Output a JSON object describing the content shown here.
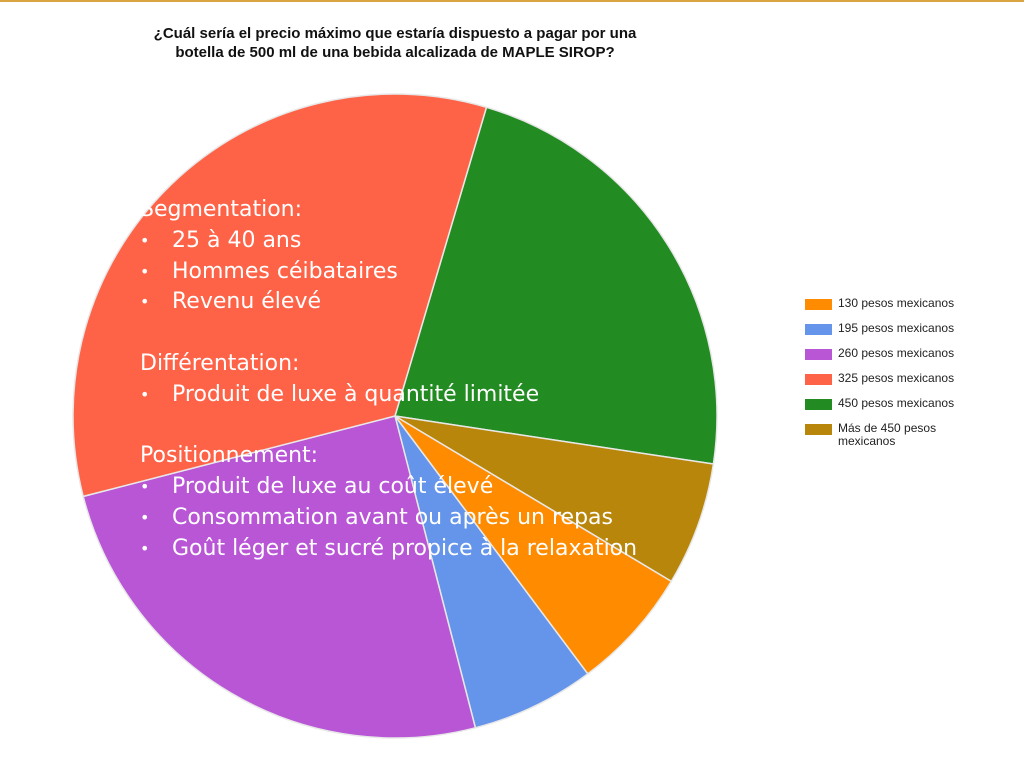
{
  "chart_data": {
    "type": "pie",
    "title_lines": [
      "¿Cuál sería el precio máximo que estaría dispuesto a pagar por una",
      "botella de 500 ml de una bebida alcalizada de MAPLE SIROP?"
    ],
    "categories": [
      "130 pesos mexicanos",
      "195 pesos mexicanos",
      "260 pesos mexicanos",
      "325 pesos mexicanos",
      "450 pesos mexicanos",
      "Más de 450 pesos mexicanos"
    ],
    "values": [
      6.2,
      6.2,
      25.0,
      33.6,
      22.8,
      6.2
    ],
    "colors": [
      "#ff8c00",
      "#6595ea",
      "#b856d6",
      "#fe6348",
      "#228b22",
      "#b8860b"
    ],
    "slice_order": [
      4,
      5,
      0,
      1,
      2,
      3
    ],
    "start_angle_deg": 16.5,
    "legend_position": "right"
  },
  "overlay": {
    "sections": [
      {
        "heading": "Segmentation:",
        "bullets": [
          "25 à 40 ans",
          "Hommes céibataires",
          "Revenu élevé"
        ]
      },
      {
        "heading": "Différentation:",
        "bullets": [
          "Produit de luxe à quantité limitée"
        ]
      },
      {
        "heading": "Positionnement:",
        "bullets": [
          "Produit de luxe au coût élevé",
          "Consommation avant ou après un repas",
          "Goût léger et sucré propice à la relaxation"
        ]
      }
    ],
    "bullet_char": "•"
  }
}
